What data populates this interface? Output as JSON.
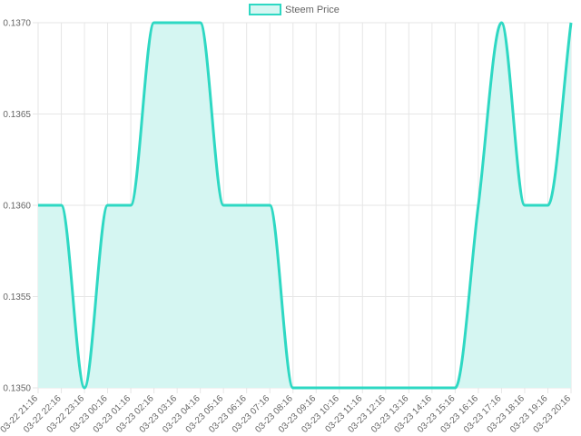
{
  "chart_data": {
    "type": "line",
    "categories": [
      "03-22 21:16",
      "03-22 22:16",
      "03-22 23:16",
      "03-23 00:16",
      "03-23 01:16",
      "03-23 02:16",
      "03-23 03:16",
      "03-23 04:16",
      "03-23 05:16",
      "03-23 06:16",
      "03-23 07:16",
      "03-23 08:16",
      "03-23 09:16",
      "03-23 10:16",
      "03-23 11:16",
      "03-23 12:16",
      "03-23 13:16",
      "03-23 14:16",
      "03-23 15:16",
      "03-23 16:16",
      "03-23 17:16",
      "03-23 18:16",
      "03-23 19:16",
      "03-23 20:16"
    ],
    "series": [
      {
        "name": "Steem Price",
        "color": "#2ed8c3",
        "fill": "#d5f6f2",
        "values": [
          0.136,
          0.136,
          0.135,
          0.136,
          0.136,
          0.137,
          0.137,
          0.137,
          0.136,
          0.136,
          0.136,
          0.135,
          0.135,
          0.135,
          0.135,
          0.135,
          0.135,
          0.135,
          0.135,
          0.136,
          0.137,
          0.136,
          0.136,
          0.137
        ]
      }
    ],
    "ylim": [
      0.135,
      0.137
    ],
    "yticks": [
      {
        "value": 0.135,
        "label": "0.1350"
      },
      {
        "value": 0.1355,
        "label": "0.1355"
      },
      {
        "value": 0.136,
        "label": "0.1360"
      },
      {
        "value": 0.1365,
        "label": "0.1365"
      },
      {
        "value": 0.137,
        "label": "0.1370"
      }
    ],
    "grid": true,
    "legend": "top"
  }
}
